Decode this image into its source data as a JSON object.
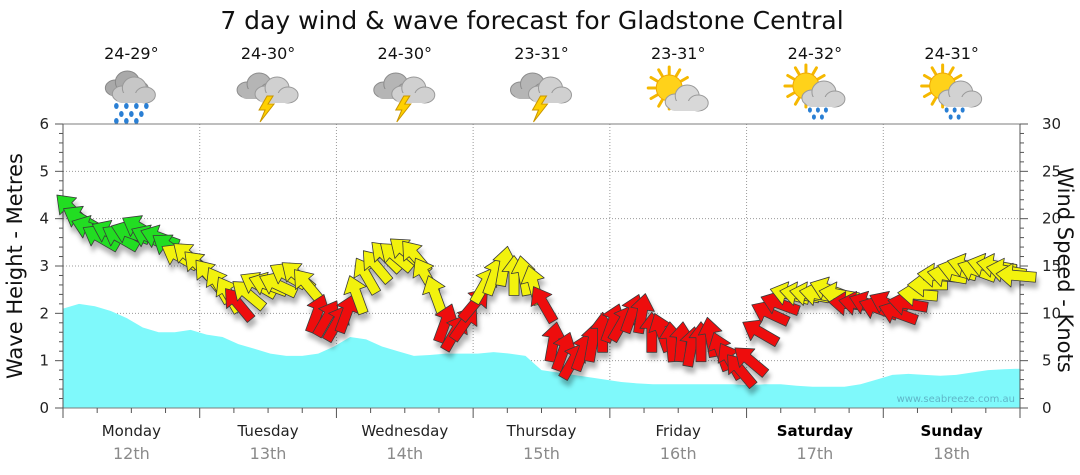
{
  "chart_data": {
    "type": "area",
    "title": "7 day wind & wave forecast for Gladstone Central",
    "ylabel": "Wave Height - Metres",
    "y2label": "Wind Speed - Knots",
    "ylim": [
      0,
      6
    ],
    "y2lim": [
      0,
      30
    ],
    "yticks": [
      "0",
      "1",
      "2",
      "3",
      "4",
      "5",
      "6"
    ],
    "y2ticks": [
      "0",
      "5",
      "10",
      "15",
      "20",
      "25",
      "30"
    ],
    "credit": "www.seabreeze.com.au",
    "days": [
      {
        "name": "Monday",
        "date": "12th",
        "temp": "24-29°",
        "icon": "heavy-rain-icon",
        "weekend": false
      },
      {
        "name": "Tuesday",
        "date": "13th",
        "temp": "24-30°",
        "icon": "thunderstorm-icon",
        "weekend": false
      },
      {
        "name": "Wednesday",
        "date": "14th",
        "temp": "24-30°",
        "icon": "thunderstorm-icon",
        "weekend": false
      },
      {
        "name": "Thursday",
        "date": "15th",
        "temp": "23-31°",
        "icon": "thunderstorm-icon",
        "weekend": false
      },
      {
        "name": "Friday",
        "date": "16th",
        "temp": "23-31°",
        "icon": "partly-cloudy-icon",
        "weekend": false
      },
      {
        "name": "Saturday",
        "date": "17th",
        "temp": "24-32°",
        "icon": "sun-showers-icon",
        "weekend": true
      },
      {
        "name": "Sunday",
        "date": "18th",
        "temp": "24-31°",
        "icon": "sun-showers-icon",
        "weekend": true
      }
    ],
    "wave_height_m": [
      2.1,
      2.2,
      2.15,
      2.05,
      1.9,
      1.7,
      1.6,
      1.6,
      1.65,
      1.55,
      1.5,
      1.35,
      1.25,
      1.15,
      1.1,
      1.1,
      1.15,
      1.3,
      1.5,
      1.45,
      1.3,
      1.2,
      1.1,
      1.12,
      1.15,
      1.15,
      1.15,
      1.18,
      1.15,
      1.1,
      0.8,
      0.75,
      0.7,
      0.65,
      0.6,
      0.55,
      0.52,
      0.5,
      0.5,
      0.5,
      0.5,
      0.5,
      0.5,
      0.48,
      0.5,
      0.5,
      0.47,
      0.45,
      0.45,
      0.45,
      0.5,
      0.6,
      0.7,
      0.72,
      0.7,
      0.68,
      0.7,
      0.75,
      0.8,
      0.82,
      0.83
    ],
    "wind_colors": {
      "strong": "#22dd22",
      "moderate": "#f2f20a",
      "light": "#ee1111"
    },
    "wind_knots": [
      21,
      20,
      19,
      18,
      18.5,
      18,
      18.5,
      19,
      18,
      18,
      17,
      16,
      16,
      15,
      14,
      13,
      12,
      11,
      12,
      13,
      13,
      13,
      14,
      14,
      13,
      10,
      9.5,
      9,
      10,
      12,
      14,
      15,
      16,
      16,
      16.5,
      16,
      14,
      12,
      9,
      8,
      9,
      11,
      13,
      14,
      15,
      14,
      14,
      13,
      11,
      7,
      6,
      5,
      6,
      7,
      8,
      9,
      9,
      10,
      10,
      8,
      8,
      7,
      7,
      6.5,
      7,
      7.5,
      6,
      5,
      4,
      5,
      8,
      10,
      11,
      12,
      12,
      12,
      12,
      12.5,
      12,
      11,
      11,
      11,
      10.5,
      11,
      10,
      11,
      12,
      13,
      14,
      14,
      14.5,
      15,
      14.5,
      15,
      15,
      14.5,
      14
    ],
    "wind_dir_deg": [
      135,
      120,
      110,
      120,
      115,
      120,
      110,
      120,
      115,
      110,
      125,
      120,
      130,
      135,
      140,
      150,
      150,
      140,
      130,
      120,
      110,
      115,
      120,
      130,
      140,
      200,
      210,
      210,
      200,
      160,
      150,
      140,
      135,
      130,
      130,
      140,
      150,
      160,
      200,
      210,
      215,
      220,
      210,
      200,
      190,
      180,
      170,
      165,
      150,
      190,
      200,
      210,
      200,
      190,
      180,
      200,
      210,
      200,
      190,
      180,
      160,
      175,
      185,
      190,
      180,
      170,
      160,
      150,
      140,
      130,
      120,
      115,
      110,
      105,
      100,
      100,
      100,
      110,
      100,
      95,
      100,
      110,
      110,
      115,
      110,
      100,
      95,
      90,
      95,
      100,
      105,
      105,
      110,
      105,
      100,
      100,
      95
    ]
  }
}
